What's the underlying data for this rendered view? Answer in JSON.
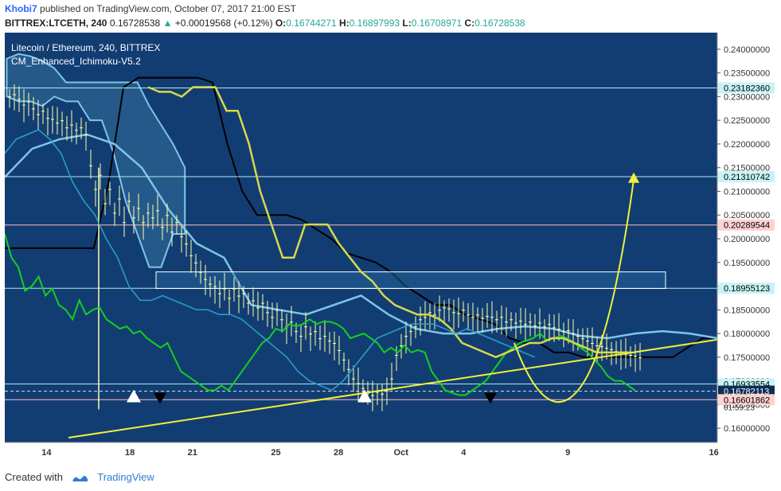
{
  "header": {
    "author": "Khobi7",
    "published_text": "published on TradingView.com, October 07, 2017 21:00 EST",
    "symbol_line": "BITTREX:LTCETH, 240",
    "last": "0.16728538",
    "change": "+0.00019568 (+0.12%)",
    "o_label": "O:",
    "o": "0.16744271",
    "h_label": "H:",
    "h": "0.16897993",
    "l_label": "L:",
    "l": "0.16708971",
    "c_label": "C:",
    "c": "0.16728538"
  },
  "overlay": {
    "title": "Litecoin / Ethereum, 240, BITTREX",
    "indicator": "CM_Enhanced_Ichimoku-V5.2"
  },
  "footer": {
    "created_with": "Created with",
    "brand": "TradingView"
  },
  "colors": {
    "background": "#123d73",
    "candle": "#ffffaa",
    "tenkan": "#11d11b",
    "kijun": "#d8d84a",
    "chikou": "#2aa2c9",
    "senkou_a": "#7fc5e6",
    "senkou_b": "#000000",
    "trend": "#f0f03a",
    "hline": "#aeeaf0",
    "hline_red": "#ffbcbc"
  },
  "chart_data": {
    "type": "candlestick",
    "ylim": [
      0.157,
      0.2435
    ],
    "y_ticks": [
      "0.24000000",
      "0.23500000",
      "0.23000000",
      "0.22500000",
      "0.22000000",
      "0.21500000",
      "0.21000000",
      "0.20500000",
      "0.20000000",
      "0.19500000",
      "0.19000000",
      "0.18500000",
      "0.18000000",
      "0.17500000",
      "0.17000000",
      "0.16500000",
      "0.16000000"
    ],
    "x_ticks": [
      {
        "label": "14",
        "i": 12
      },
      {
        "label": "18",
        "i": 36
      },
      {
        "label": "21",
        "i": 54
      },
      {
        "label": "25",
        "i": 78
      },
      {
        "label": "28",
        "i": 96
      },
      {
        "label": "Oct",
        "i": 114
      },
      {
        "label": "4",
        "i": 132
      },
      {
        "label": "9",
        "i": 162
      },
      {
        "label": "16",
        "i": 204
      }
    ],
    "n_slots": 180,
    "candles_ohlc_approx": "random-walk reconstruction from visual",
    "price_levels": [
      {
        "label": "0.23182360",
        "value": 0.2318236,
        "style": "light"
      },
      {
        "label": "0.21310742",
        "value": 0.2131074,
        "style": "light"
      },
      {
        "label": "0.20289544",
        "value": 0.2028954,
        "style": "red"
      },
      {
        "label": "0.18955123",
        "value": 0.1895512,
        "style": "light"
      },
      {
        "label": "0.16933554",
        "value": 0.1693355,
        "style": "light"
      },
      {
        "label": "0.16782113",
        "value": 0.1678211,
        "style": "dark"
      },
      {
        "label": "0.16601862",
        "value": 0.1660186,
        "style": "red"
      }
    ],
    "countdown_label": "01:59:23",
    "close_series": [
      0.2296,
      0.23,
      0.229,
      0.2278,
      0.2285,
      0.227,
      0.2258,
      0.2265,
      0.225,
      0.2248,
      0.224,
      0.2245,
      0.223,
      0.2236,
      0.2225,
      0.223,
      0.2215,
      0.215,
      0.21,
      0.213,
      0.207,
      0.21,
      0.205,
      0.208,
      0.203,
      0.2075,
      0.204,
      0.206,
      0.203,
      0.205,
      0.204,
      0.2055,
      0.202,
      0.2045,
      0.201,
      0.203,
      0.2,
      0.1985,
      0.196,
      0.1945,
      0.1925,
      0.191,
      0.19,
      0.1895,
      0.188,
      0.189,
      0.187,
      0.189,
      0.1875,
      0.188,
      0.186,
      0.1865,
      0.185,
      0.186,
      0.184,
      0.183,
      0.1845,
      0.1825,
      0.181,
      0.182,
      0.18,
      0.179,
      0.181,
      0.1795,
      0.18,
      0.1785,
      0.179,
      0.178,
      0.1775,
      0.176,
      0.174,
      0.172,
      0.17,
      0.169,
      0.168,
      0.167,
      0.1665,
      0.1672,
      0.1668,
      0.1675,
      0.17,
      0.175,
      0.177,
      0.179,
      0.18,
      0.181,
      0.1825,
      0.183,
      0.184,
      0.1835,
      0.1845,
      0.185,
      0.1848,
      0.184,
      0.1838,
      0.1845,
      0.1835,
      0.183,
      0.1835,
      0.1828,
      0.1832,
      0.183,
      0.1825,
      0.183,
      0.182,
      0.1825,
      0.1818,
      0.1822,
      0.1815,
      0.182,
      0.1812,
      0.1818,
      0.181,
      0.1815,
      0.1808,
      0.1805,
      0.18,
      0.1802,
      0.1795,
      0.179,
      0.1785,
      0.178,
      0.1775,
      0.177,
      0.1768,
      0.1765,
      0.1762,
      0.1758,
      0.1755,
      0.1752,
      0.175,
      0.1748,
      0.1745,
      0.174,
      0.172,
      0.17,
      0.169,
      0.1685,
      0.168,
      0.1675,
      0.1673
    ],
    "tenkan_series": [
      0.201,
      0.196,
      0.194,
      0.189,
      0.19,
      0.192,
      0.188,
      0.1895,
      0.186,
      0.185,
      0.183,
      0.187,
      0.184,
      0.185,
      0.1855,
      0.183,
      0.182,
      0.181,
      0.1815,
      0.18,
      0.1805,
      0.179,
      0.178,
      0.177,
      0.178,
      0.175,
      0.172,
      0.171,
      0.17,
      0.169,
      0.168,
      0.168,
      0.169,
      0.168,
      0.17,
      0.172,
      0.174,
      0.176,
      0.178,
      0.179,
      0.181,
      0.1805,
      0.182,
      0.1815,
      0.182,
      0.183,
      0.182,
      0.1825,
      0.1825,
      0.182,
      0.181,
      0.179,
      0.1795,
      0.18,
      0.179,
      0.178,
      0.176,
      0.177,
      0.176,
      0.1775,
      0.176,
      0.1765,
      0.176,
      0.172,
      0.17,
      0.168,
      0.1675,
      0.167,
      0.167,
      0.168,
      0.169,
      0.17,
      0.172,
      0.174,
      0.176,
      0.177,
      0.178,
      0.1785,
      0.179,
      0.18,
      0.1785,
      0.179,
      0.1795,
      0.179,
      0.178,
      0.177,
      0.176,
      0.1745,
      0.173,
      0.171,
      0.17,
      0.17,
      0.169,
      0.168
    ],
    "kijun_series": [
      0.232,
      0.231,
      0.231,
      0.23,
      0.232,
      0.232,
      0.232,
      0.227,
      0.227,
      0.22,
      0.21,
      0.203,
      0.196,
      0.196,
      0.203,
      0.203,
      0.203,
      0.199,
      0.196,
      0.193,
      0.191,
      0.188,
      0.186,
      0.185,
      0.184,
      0.184,
      0.183,
      0.181,
      0.178,
      0.177,
      0.176,
      0.175,
      0.176,
      0.177,
      0.178,
      0.178,
      0.179,
      0.179,
      0.178,
      0.177,
      0.176,
      0.176,
      0.176,
      0.176
    ],
    "chikou_series": [
      0.218,
      0.221,
      0.222,
      0.223,
      0.221,
      0.218,
      0.212,
      0.208,
      0.205,
      0.2,
      0.196,
      0.19,
      0.187,
      0.187,
      0.188,
      0.187,
      0.186,
      0.185,
      0.185,
      0.184,
      0.184,
      0.183,
      0.181,
      0.179,
      0.177,
      0.175,
      0.172,
      0.17,
      0.169,
      0.168,
      0.17,
      0.173,
      0.176,
      0.179,
      0.18,
      0.181,
      0.182,
      0.182,
      0.182,
      0.181,
      0.18,
      0.181,
      0.18,
      0.179,
      0.178,
      0.177,
      0.176,
      0.175
    ]
  }
}
